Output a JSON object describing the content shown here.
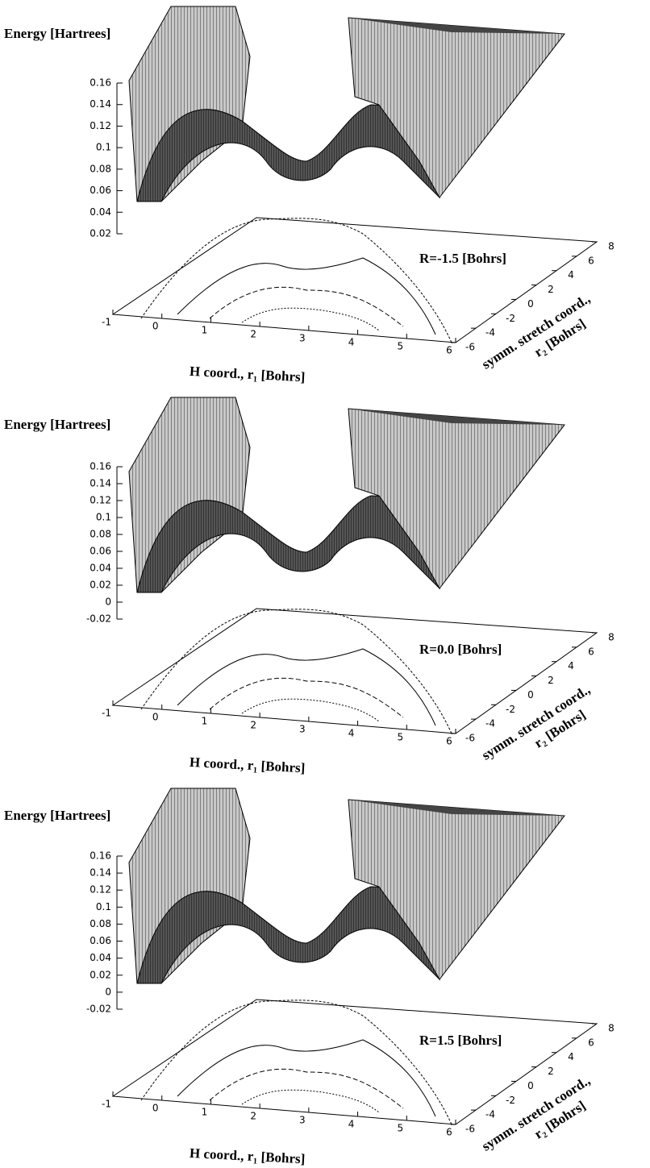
{
  "chart_data": [
    {
      "type": "surface",
      "zlabel": "Energy [Hartrees]",
      "zlim": [
        0.02,
        0.16
      ],
      "zticks": [
        0.02,
        0.04,
        0.06,
        0.08,
        0.1,
        0.12,
        0.14,
        0.16
      ],
      "xlim": [
        -1,
        6
      ],
      "xticks": [
        -1,
        0,
        1,
        2,
        3,
        4,
        5,
        6
      ],
      "xlabel": "H coord., r₁ [Bohrs]",
      "ylim": [
        -6,
        8
      ],
      "yticks": [
        -6,
        -4,
        -2,
        0,
        2,
        4,
        6,
        8
      ],
      "ylabel": [
        "symm. stretch coord.,",
        "r₂ [Bohrs]"
      ],
      "annotation": "R=-1.5 [Bohrs]"
    },
    {
      "type": "surface",
      "zlabel": "Energy [Hartrees]",
      "zlim": [
        -0.02,
        0.16
      ],
      "zticks": [
        -0.02,
        0,
        0.02,
        0.04,
        0.06,
        0.08,
        0.1,
        0.12,
        0.14,
        0.16
      ],
      "xlim": [
        -1,
        6
      ],
      "xticks": [
        -1,
        0,
        1,
        2,
        3,
        4,
        5,
        6
      ],
      "xlabel": "H coord., r₁ [Bohrs]",
      "ylim": [
        -6,
        8
      ],
      "yticks": [
        -6,
        -4,
        -2,
        0,
        2,
        4,
        6,
        8
      ],
      "ylabel": [
        "symm. stretch coord.,",
        "r₂ [Bohrs]"
      ],
      "annotation": "R=0.0 [Bohrs]"
    },
    {
      "type": "surface",
      "zlabel": "Energy [Hartrees]",
      "zlim": [
        -0.02,
        0.16
      ],
      "zticks": [
        -0.02,
        0,
        0.02,
        0.04,
        0.06,
        0.08,
        0.1,
        0.12,
        0.14,
        0.16
      ],
      "xlim": [
        -1,
        6
      ],
      "xticks": [
        -1,
        0,
        1,
        2,
        3,
        4,
        5,
        6
      ],
      "xlabel": "H coord., r₁ [Bohrs]",
      "ylim": [
        -6,
        8
      ],
      "yticks": [
        -6,
        -4,
        -2,
        0,
        2,
        4,
        6,
        8
      ],
      "ylabel": [
        "symm. stretch coord.,",
        "r₂ [Bohrs]"
      ],
      "annotation": "R=1.5 [Bohrs]"
    }
  ]
}
